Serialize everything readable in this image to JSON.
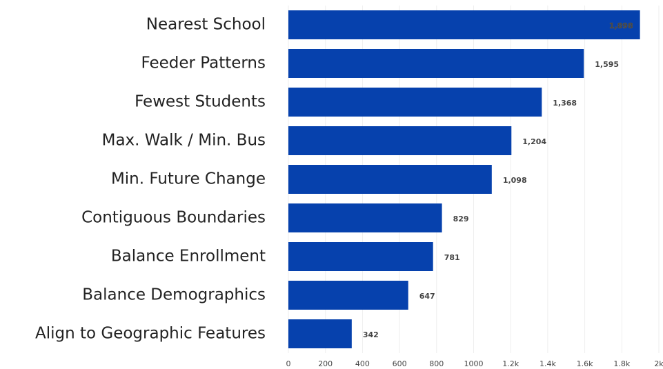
{
  "chart_data": {
    "type": "bar",
    "orientation": "horizontal",
    "categories": [
      "Nearest School",
      "Feeder Patterns",
      "Fewest Students",
      "Max. Walk / Min. Bus",
      "Min. Future Change",
      "Contiguous Boundaries",
      "Balance Enrollment",
      "Balance Demographics",
      "Align to Geographic Features"
    ],
    "values": [
      1898,
      1595,
      1368,
      1204,
      1098,
      829,
      781,
      647,
      342
    ],
    "value_labels": [
      "1,898",
      "1,595",
      "1,368",
      "1,204",
      "1,098",
      "829",
      "781",
      "647",
      "342"
    ],
    "color": "#0641ad",
    "xlim": [
      0,
      2000
    ],
    "xticks": [
      0,
      200,
      400,
      600,
      800,
      1000,
      {
        "value": 1200,
        "label": "1.2k"
      },
      {
        "value": 1400,
        "label": "1.4k"
      },
      {
        "value": 1600,
        "label": "1.6k"
      },
      {
        "value": 1800,
        "label": "1.8k"
      },
      {
        "value": 2000,
        "label": "2k"
      }
    ],
    "grid": true
  }
}
